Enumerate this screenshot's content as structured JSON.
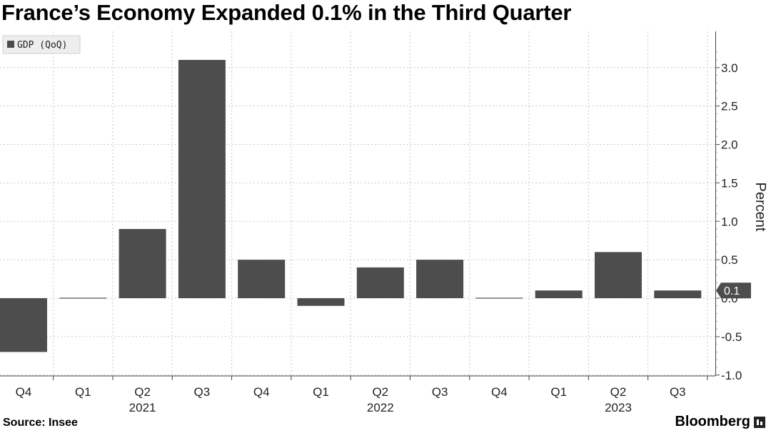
{
  "title": "France’s Economy Expanded 0.1% in the Third Quarter",
  "source": "Source: Insee",
  "brand": "Bloomberg",
  "chart_data": {
    "type": "bar",
    "categories": [
      "Q4",
      "Q1",
      "Q2",
      "Q3",
      "Q4",
      "Q1",
      "Q2",
      "Q3",
      "Q4",
      "Q1",
      "Q2",
      "Q3"
    ],
    "year_labels": [
      {
        "label": "2021",
        "category_index": 2
      },
      {
        "label": "2022",
        "category_index": 6
      },
      {
        "label": "2023",
        "category_index": 10
      }
    ],
    "series": [
      {
        "name": "GDP (QoQ)",
        "values": [
          -0.7,
          0.0,
          0.9,
          3.1,
          0.5,
          -0.1,
          0.4,
          0.5,
          0.0,
          0.1,
          0.6,
          0.1
        ],
        "color": "#4d4d4d"
      }
    ],
    "ylabel": "Percent",
    "ylim": [
      -1.0,
      3.4
    ],
    "yticks": [
      -1.0,
      -0.5,
      0.0,
      0.5,
      1.0,
      1.5,
      2.0,
      2.5,
      3.0
    ],
    "ytick_labels": [
      "-1.0",
      "-0.5",
      "0.0",
      "0.5",
      "1.0",
      "1.5",
      "2.0",
      "2.5",
      "3.0"
    ],
    "last_value_label": "0.1",
    "grid": true,
    "legend": "top-left"
  }
}
